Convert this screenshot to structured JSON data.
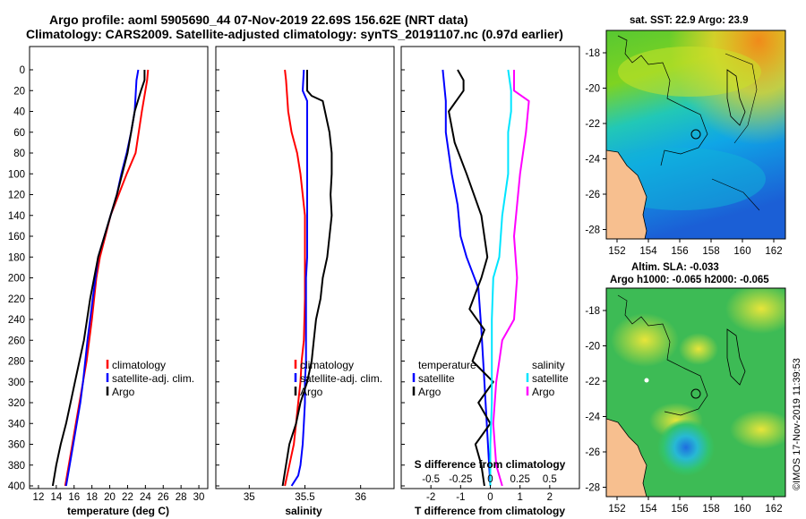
{
  "header": {
    "title_line1": "Argo profile: aoml 5905690_44 07-Nov-2019 22.69S 156.62E (NRT data)",
    "title_line2": "Climatology: CARS2009. Satellite-adjusted climatology: synTS_20191107.nc (0.97d earlier)"
  },
  "colors": {
    "climatology": "#ff0000",
    "satellite": "#0000ff",
    "argo": "#000000",
    "sal_satellite": "#00e5ff",
    "sal_climatology": "#ff00ff",
    "land": "#f7bf8f"
  },
  "depth_axis": {
    "ticks": [
      "0",
      "20",
      "40",
      "60",
      "80",
      "100",
      "120",
      "140",
      "160",
      "180",
      "200",
      "220",
      "240",
      "260",
      "280",
      "300",
      "320",
      "340",
      "360",
      "380",
      "400"
    ]
  },
  "chart_data": [
    {
      "type": "line",
      "name": "temperature",
      "xlabel": "temperature (deg C)",
      "xlim": [
        11,
        31
      ],
      "ylim": [
        0,
        400
      ],
      "xticks": [
        12,
        14,
        16,
        18,
        20,
        22,
        24,
        26,
        28,
        30
      ],
      "xtick_labels": [
        "12",
        "14",
        "16",
        "18",
        "20",
        "22",
        "24",
        "26",
        "28",
        "30"
      ],
      "legend": [
        "climatology",
        "satellite-adj. clim.",
        "Argo"
      ],
      "series": [
        {
          "name": "climatology",
          "color": "#ff0000",
          "x": [
            24.3,
            24.2,
            23.6,
            22.9,
            21.9,
            21.0,
            20.1,
            19.5,
            18.9,
            18.5,
            18.0,
            17.4,
            17.0,
            16.6,
            16.2,
            15.8,
            15.4,
            15.0
          ],
          "depth": [
            0,
            10,
            40,
            80,
            100,
            120,
            140,
            160,
            180,
            200,
            240,
            280,
            300,
            320,
            340,
            360,
            380,
            400
          ]
        },
        {
          "name": "satellite-adj. clim.",
          "color": "#0000ff",
          "x": [
            23.2,
            23.0,
            22.8,
            22.4,
            21.9,
            21.3,
            20.8,
            20.1,
            19.4,
            18.7,
            18.1,
            17.5,
            17.0,
            16.7,
            16.3,
            15.9,
            15.5,
            15.1
          ],
          "depth": [
            0,
            10,
            40,
            60,
            80,
            100,
            120,
            140,
            160,
            180,
            220,
            260,
            300,
            320,
            340,
            360,
            380,
            400
          ]
        },
        {
          "name": "Argo",
          "color": "#000000",
          "x": [
            23.9,
            23.9,
            23.5,
            22.8,
            22.4,
            22.0,
            21.4,
            20.8,
            20.1,
            19.4,
            18.7,
            17.8,
            17.1,
            16.6,
            16.1,
            15.6,
            15.1,
            14.5,
            14.0,
            13.6
          ],
          "depth": [
            0,
            10,
            20,
            40,
            60,
            80,
            100,
            120,
            140,
            160,
            180,
            220,
            260,
            280,
            300,
            320,
            340,
            360,
            380,
            400
          ]
        }
      ]
    },
    {
      "type": "line",
      "name": "salinity",
      "xlabel": "salinity",
      "xlim": [
        34.7,
        36.3
      ],
      "ylim": [
        0,
        400
      ],
      "xticks": [
        35,
        35.5,
        36
      ],
      "xtick_labels": [
        "35",
        "35.5",
        "36"
      ],
      "legend": [
        "climatology",
        "satellite-adj. clim.",
        "Argo"
      ],
      "series": [
        {
          "name": "climatology",
          "color": "#ff0000",
          "x": [
            35.32,
            35.33,
            35.35,
            35.38,
            35.43,
            35.46,
            35.48,
            35.5,
            35.5,
            35.5,
            35.49,
            35.47,
            35.46,
            35.44,
            35.42,
            35.4,
            35.38,
            35.36,
            35.32
          ],
          "depth": [
            0,
            10,
            40,
            60,
            80,
            100,
            120,
            140,
            180,
            220,
            260,
            280,
            300,
            320,
            340,
            360,
            370,
            380,
            400
          ]
        },
        {
          "name": "satellite-adj. clim.",
          "color": "#0000ff",
          "x": [
            35.49,
            35.48,
            35.52,
            35.52,
            35.52,
            35.52,
            35.52,
            35.51,
            35.51,
            35.51,
            35.5,
            35.5,
            35.49,
            35.48,
            35.46,
            35.44,
            35.38
          ],
          "depth": [
            0,
            20,
            30,
            60,
            100,
            140,
            180,
            200,
            240,
            280,
            300,
            320,
            340,
            360,
            380,
            390,
            400
          ]
        },
        {
          "name": "Argo",
          "color": "#000000",
          "x": [
            35.52,
            35.52,
            35.56,
            35.66,
            35.68,
            35.72,
            35.74,
            35.74,
            35.73,
            35.74,
            35.72,
            35.7,
            35.66,
            35.64,
            35.6,
            35.58,
            35.56,
            35.52,
            35.46,
            35.42,
            35.36,
            35.3
          ],
          "depth": [
            0,
            20,
            25,
            30,
            40,
            60,
            80,
            100,
            120,
            140,
            160,
            180,
            200,
            220,
            240,
            260,
            280,
            300,
            320,
            340,
            360,
            400
          ]
        }
      ]
    },
    {
      "type": "line",
      "name": "difference_from_climatology",
      "xlabel": "T difference from climatology",
      "xlabel_top": "S difference from climatology",
      "xlim": [
        -3,
        3
      ],
      "ylim": [
        0,
        400
      ],
      "xticks": [
        -2,
        -1,
        0,
        1,
        2
      ],
      "xtick_labels": [
        "-2",
        "-1",
        "0",
        "1",
        "2"
      ],
      "top_ticks": [
        -0.5,
        -0.25,
        0,
        0.25,
        0.5
      ],
      "top_tick_labels": [
        "-0.5",
        "-0.25",
        "0",
        "0.25",
        "0.5"
      ],
      "top_scale": 4,
      "legend_temperature_heading": "temperature",
      "legend_salinity_heading": "salinity",
      "legend_temperature": [
        "satellite",
        "Argo"
      ],
      "legend_salinity": [
        "satellite",
        "Argo"
      ],
      "series": [
        {
          "name": "T satellite",
          "color": "#0000ff",
          "x": [
            -1.6,
            -1.5,
            -1.5,
            -1.3,
            -1.1,
            -1.0,
            -0.8,
            -0.6,
            -0.4,
            -0.3,
            -0.2,
            -0.1,
            0.0
          ],
          "depth": [
            0,
            30,
            60,
            100,
            130,
            160,
            180,
            195,
            210,
            250,
            300,
            350,
            400
          ]
        },
        {
          "name": "T Argo",
          "color": "#000000",
          "x": [
            -1.1,
            -0.9,
            -0.9,
            -1.4,
            -1.2,
            -0.8,
            -0.3,
            -0.1,
            -0.3,
            -0.7,
            -0.2,
            -0.6,
            0.1,
            -0.4,
            0.0,
            -0.5,
            -0.3,
            -0.2
          ],
          "depth": [
            0,
            10,
            20,
            40,
            70,
            100,
            140,
            180,
            200,
            230,
            250,
            280,
            300,
            320,
            340,
            360,
            380,
            400
          ]
        },
        {
          "name": "S satellite",
          "color": "#00e5ff",
          "x": [
            0.6,
            0.7,
            0.7,
            0.6,
            0.6,
            0.4,
            0.3,
            0.1,
            0.05,
            0.05,
            0.05,
            0.0,
            0.0
          ],
          "depth": [
            0,
            20,
            40,
            60,
            100,
            140,
            180,
            200,
            240,
            280,
            320,
            360,
            400
          ]
        },
        {
          "name": "S Argo",
          "color": "#ff00ff",
          "x": [
            0.8,
            0.8,
            1.3,
            1.2,
            1.0,
            0.8,
            0.9,
            0.8,
            0.4,
            0.3,
            0.2,
            0.1,
            0.2,
            0.4
          ],
          "depth": [
            0,
            20,
            30,
            60,
            100,
            160,
            200,
            240,
            260,
            280,
            300,
            340,
            380,
            400
          ]
        }
      ]
    }
  ],
  "maps": {
    "sst": {
      "title": "sat. SST: 22.9 Argo: 23.9",
      "yticks": [
        "-18",
        "-20",
        "-22",
        "-24",
        "-26",
        "-28"
      ],
      "xticks": [
        "152",
        "154",
        "156",
        "158",
        "160",
        "162"
      ]
    },
    "sla": {
      "title1": "Altim. SLA: -0.033",
      "title2": "Argo h1000: -0.065 h2000: -0.065",
      "yticks": [
        "-18",
        "-20",
        "-22",
        "-24",
        "-26",
        "-28"
      ],
      "xticks": [
        "152",
        "154",
        "156",
        "158",
        "160",
        "162"
      ]
    }
  },
  "footer": {
    "watermark": "©IMOS 17-Nov-2019 11:39:53"
  }
}
